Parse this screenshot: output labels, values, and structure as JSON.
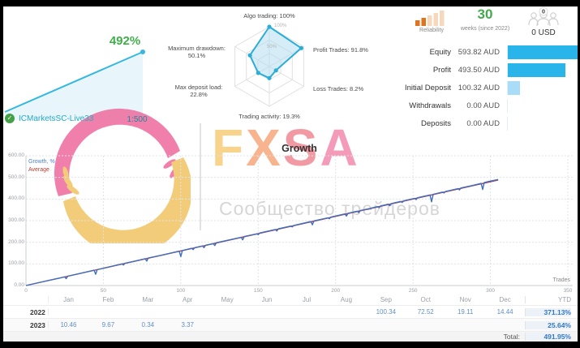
{
  "top": {
    "broker": "ICMarketsSC-Live33",
    "leverage": "1:500",
    "reliability_label": "Reliability",
    "weeks_value": "30",
    "weeks_label": "weeks (since 2022)",
    "subscribers_badge": "0",
    "price": "0 USD"
  },
  "summary": {
    "rows": [
      {
        "label": "Equity",
        "value": "593.82 AUD",
        "bar_pct": 100,
        "bar_color": "#29b4ea"
      },
      {
        "label": "Profit",
        "value": "493.50 AUD",
        "bar_pct": 83.1,
        "bar_color": "#29b4ea"
      },
      {
        "label": "Initial Deposit",
        "value": "100.32 AUD",
        "bar_pct": 16.9,
        "bar_color": "#a9dcf6"
      },
      {
        "label": "Withdrawals",
        "value": "0.00 AUD",
        "bar_pct": 0,
        "bar_color": "#29b4ea"
      },
      {
        "label": "Deposits",
        "value": "0.00 AUD",
        "bar_pct": 0,
        "bar_color": "#29b4ea"
      }
    ]
  },
  "chart_data": [
    {
      "type": "area",
      "name": "mini-growth-sparkline",
      "label": "492%",
      "line_color": "#35b8e0",
      "points": [
        [
          0,
          0
        ],
        [
          305,
          492
        ]
      ]
    },
    {
      "type": "radar",
      "name": "signal-quality-radar",
      "grid_labels": [
        "100%",
        "50%"
      ],
      "axes": [
        {
          "label": "Algo trading: 100%",
          "value": 100
        },
        {
          "label": "Profit Trades: 91.8%",
          "value": 91.8
        },
        {
          "label": "Loss Trades: 8.2%",
          "value": 8.2
        },
        {
          "label": "Trading activity: 19.3%",
          "value": 19.3
        },
        {
          "label": "Max deposit load: 22.8%",
          "line1": "Max deposit load:",
          "line2": "22.8%",
          "value": 22.8
        },
        {
          "label": "Maximum drawdown: 50.1%",
          "line1": "Maximum drawdown:",
          "line2": "50.1%",
          "value": 50.1
        }
      ]
    },
    {
      "type": "line",
      "name": "growth-chart",
      "title": "Growth",
      "xlabel": "Trades",
      "xlim": [
        0,
        350
      ],
      "ylim": [
        0,
        600
      ],
      "x_ticks": [
        "0",
        "50",
        "100",
        "150",
        "200",
        "250",
        "300",
        "350"
      ],
      "y_ticks": [
        "600.00",
        "500.00",
        "400.00",
        "300.00",
        "200.00",
        "100.00",
        "0.00"
      ],
      "grid": "dashed",
      "legend": [
        {
          "name": "Growth, %",
          "color": "#4a84d4"
        },
        {
          "name": "Average",
          "color": "#c0392b"
        }
      ],
      "series": [
        {
          "name": "Growth, %",
          "color": "#3e6fc0",
          "points": [
            [
              0,
              0
            ],
            [
              8,
              13
            ],
            [
              15,
              24
            ],
            [
              22,
              35
            ],
            [
              25,
              40
            ],
            [
              26,
              32
            ],
            [
              27,
              43
            ],
            [
              35,
              56
            ],
            [
              44,
              71
            ],
            [
              45,
              52
            ],
            [
              46,
              73
            ],
            [
              55,
              88
            ],
            [
              62,
              100
            ],
            [
              63,
              95
            ],
            [
              64,
              103
            ],
            [
              70,
              112
            ],
            [
              77,
              124
            ],
            [
              78,
              113
            ],
            [
              79,
              127
            ],
            [
              88,
              141
            ],
            [
              99,
              159
            ],
            [
              100,
              134
            ],
            [
              101,
              162
            ],
            [
              107,
              172
            ],
            [
              108,
              166
            ],
            [
              109,
              175
            ],
            [
              114,
              183
            ],
            [
              115,
              175
            ],
            [
              116,
              186
            ],
            [
              121,
              194
            ],
            [
              122,
              185
            ],
            [
              123,
              198
            ],
            [
              130,
              209
            ],
            [
              139,
              223
            ],
            [
              140,
              211
            ],
            [
              141,
              227
            ],
            [
              149,
              239
            ],
            [
              150,
              235
            ],
            [
              151,
              243
            ],
            [
              161,
              259
            ],
            [
              162,
              252
            ],
            [
              163,
              262
            ],
            [
              171,
              275
            ],
            [
              172,
              271
            ],
            [
              173,
              278
            ],
            [
              184,
              296
            ],
            [
              185,
              281
            ],
            [
              186,
              299
            ],
            [
              195,
              313
            ],
            [
              196,
              309
            ],
            [
              197,
              317
            ],
            [
              206,
              331
            ],
            [
              207,
              321
            ],
            [
              208,
              334
            ],
            [
              214,
              344
            ],
            [
              215,
              337
            ],
            [
              216,
              347
            ],
            [
              222,
              356
            ],
            [
              227,
              365
            ],
            [
              228,
              360
            ],
            [
              229,
              368
            ],
            [
              234,
              376
            ],
            [
              235,
              369
            ],
            [
              236,
              379
            ],
            [
              242,
              389
            ],
            [
              243,
              384
            ],
            [
              244,
              392
            ],
            [
              251,
              403
            ],
            [
              252,
              397
            ],
            [
              253,
              406
            ],
            [
              261,
              419
            ],
            [
              262,
              387
            ],
            [
              263,
              422
            ],
            [
              269,
              432
            ],
            [
              270,
              428
            ],
            [
              271,
              435
            ],
            [
              279,
              448
            ],
            [
              280,
              442
            ],
            [
              281,
              451
            ],
            [
              288,
              462
            ],
            [
              294,
              472
            ],
            [
              295,
              444
            ],
            [
              296,
              476
            ],
            [
              300,
              483
            ],
            [
              305,
              490
            ]
          ]
        },
        {
          "name": "Average",
          "color": "#b4374b",
          "points": [
            [
              0,
              0
            ],
            [
              305,
              488
            ]
          ]
        }
      ]
    }
  ],
  "monthly_table": {
    "columns": [
      "Jan",
      "Feb",
      "Mar",
      "Apr",
      "May",
      "Jun",
      "Jul",
      "Aug",
      "Sep",
      "Oct",
      "Nov",
      "Dec",
      "YTD"
    ],
    "rows": [
      {
        "year": "2022",
        "values": [
          "",
          "",
          "",
          "",
          "",
          "",
          "",
          "",
          "100.34",
          "72.52",
          "19.11",
          "14.44"
        ],
        "ytd": "371.13%"
      },
      {
        "year": "2023",
        "values": [
          "10.46",
          "9.67",
          "0.34",
          "3.37",
          "",
          "",
          "",
          "",
          "",
          "",
          "",
          ""
        ],
        "ytd": "25.64%"
      }
    ],
    "total_label": "Total:",
    "total_value": "491.95%"
  },
  "watermark": {
    "letters": [
      {
        "char": "F",
        "color": "#f6c96f"
      },
      {
        "char": "X",
        "color": "#f6a273"
      },
      {
        "char": "S",
        "color": "#f0828e"
      },
      {
        "char": "A",
        "color": "#f283a8"
      }
    ],
    "subtitle": "Сообщество трейдеров",
    "hand_top_color": "#ee6fa0",
    "hand_bottom_color": "#f2c568"
  }
}
